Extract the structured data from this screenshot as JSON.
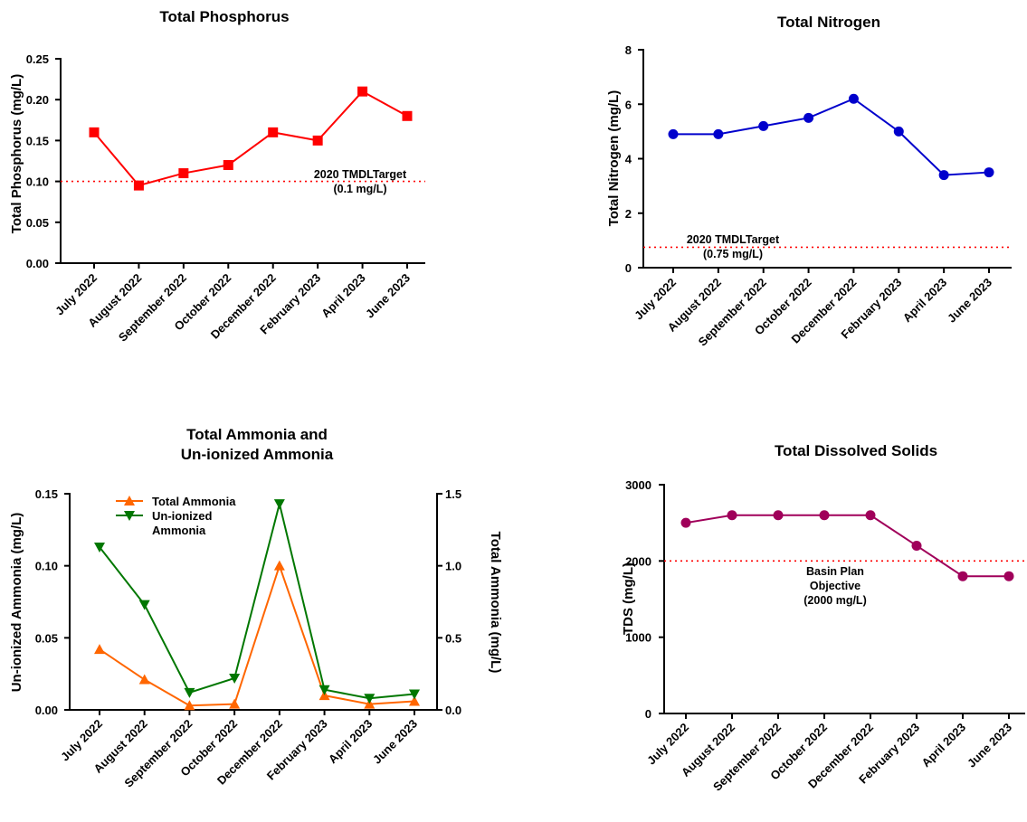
{
  "chart_data": [
    {
      "id": "tp",
      "type": "line",
      "title": "Total Phosphorus",
      "ylabel": "Total Phosphorus (mg/L)",
      "categories": [
        "July 2022",
        "August 2022",
        "September 2022",
        "October 2022",
        "December 2022",
        "February 2023",
        "April 2023",
        "June 2023"
      ],
      "ylim": [
        0,
        0.25
      ],
      "yticks": [
        "0.00",
        "0.05",
        "0.10",
        "0.15",
        "0.20",
        "0.25"
      ],
      "marker": "square",
      "color": "#ff0000",
      "series": [
        {
          "values": [
            0.16,
            0.095,
            0.11,
            0.12,
            0.16,
            0.15,
            0.21,
            0.18
          ]
        }
      ],
      "reference": {
        "value": 0.1,
        "color": "#ff0000",
        "label_lines": [
          "2020 TMDLTarget",
          "(0.1 mg/L)"
        ]
      }
    },
    {
      "id": "tn",
      "type": "line",
      "title": "Total Nitrogen",
      "ylabel": "Total Nitrogen (mg/L)",
      "categories": [
        "July 2022",
        "August 2022",
        "September 2022",
        "October 2022",
        "December 2022",
        "February 2023",
        "April 2023",
        "June 2023"
      ],
      "ylim": [
        0,
        8
      ],
      "yticks": [
        "0",
        "2",
        "4",
        "6",
        "8"
      ],
      "marker": "circle",
      "color": "#0000cc",
      "series": [
        {
          "values": [
            4.9,
            4.9,
            5.2,
            5.5,
            6.2,
            5.0,
            3.4,
            3.5
          ]
        }
      ],
      "reference": {
        "value": 0.75,
        "color": "#ff0000",
        "label_lines": [
          "2020 TMDLTarget",
          "(0.75 mg/L)"
        ]
      }
    },
    {
      "id": "amm",
      "type": "line",
      "title_lines": [
        "Total Ammonia and",
        "Un-ionized Ammonia"
      ],
      "ylabel": "Un-ionized Ammonia (mg/L)",
      "y2label": "Total Ammonia (mg/L)",
      "categories": [
        "July 2022",
        "August 2022",
        "September 2022",
        "October 2022",
        "December 2022",
        "February 2023",
        "April 2023",
        "June 2023"
      ],
      "ylim": [
        0,
        0.15
      ],
      "yticks": [
        "0.00",
        "0.05",
        "0.10",
        "0.15"
      ],
      "y2lim": [
        0,
        1.5
      ],
      "y2ticks": [
        "0.0",
        "0.5",
        "1.0",
        "1.5"
      ],
      "series": [
        {
          "name": "Total Ammonia",
          "name_lines": [
            "Total Ammonia"
          ],
          "axis": "right",
          "marker": "triangle-up",
          "color": "#ff6600",
          "values": [
            0.42,
            0.21,
            0.03,
            0.04,
            1.0,
            0.1,
            0.04,
            0.06
          ]
        },
        {
          "name": "Un-ionized Ammonia",
          "name_lines": [
            "Un-ionized",
            "Ammonia"
          ],
          "axis": "left",
          "marker": "triangle-down",
          "color": "#007700",
          "values": [
            0.113,
            0.073,
            0.012,
            0.022,
            0.143,
            0.014,
            0.008,
            0.011
          ]
        }
      ]
    },
    {
      "id": "tds",
      "type": "line",
      "title": "Total Dissolved Solids",
      "ylabel": "TDS (mg/L)",
      "categories": [
        "July 2022",
        "August 2022",
        "September 2022",
        "October 2022",
        "December 2022",
        "February 2023",
        "April 2023",
        "June 2023"
      ],
      "ylim": [
        0,
        3000
      ],
      "yticks": [
        "0",
        "1000",
        "2000",
        "3000"
      ],
      "marker": "circle",
      "color": "#a0005a",
      "series": [
        {
          "values": [
            2500,
            2600,
            2600,
            2600,
            2600,
            2200,
            1800,
            1800
          ]
        }
      ],
      "reference": {
        "value": 2000,
        "color": "#ff0000",
        "label_lines": [
          "Basin Plan",
          "Objective",
          "(2000 mg/L)"
        ]
      }
    }
  ]
}
